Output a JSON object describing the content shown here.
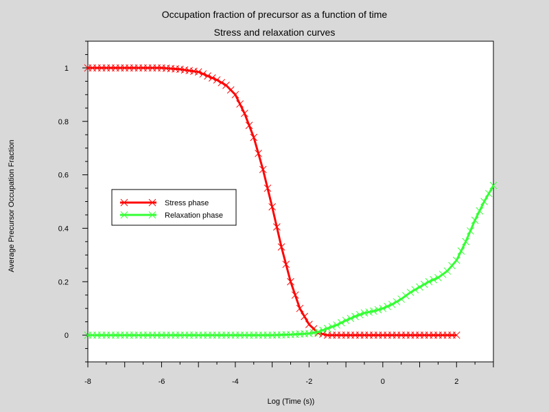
{
  "chart_data": {
    "type": "line",
    "title": "Occupation fraction of precursor as a function of time",
    "subtitle": "Stress and relaxation curves",
    "xlabel": "Log (Time (s))",
    "ylabel": "Average Precursor Occupation Fraction",
    "xlim": [
      -8,
      3
    ],
    "ylim": [
      -0.1,
      1.1
    ],
    "x_ticks": [
      -8,
      -6,
      -4,
      -2,
      0,
      2
    ],
    "y_ticks": [
      0,
      0.2,
      0.4,
      0.6,
      0.8,
      1
    ],
    "x_tick_labels": [
      "-8",
      "-6",
      "-4",
      "-2",
      "0",
      "2"
    ],
    "y_tick_labels": [
      "0",
      "0.2",
      "0.4",
      "0.6",
      "0.8",
      "1"
    ],
    "grid": false,
    "legend": "left-center",
    "series": [
      {
        "name": "Stress phase",
        "color": "#ff0000",
        "marker": "x",
        "points": [
          [
            -8.0,
            1.0
          ],
          [
            -7.5,
            1.0
          ],
          [
            -7.0,
            1.0
          ],
          [
            -6.5,
            1.0
          ],
          [
            -6.0,
            1.0
          ],
          [
            -5.5,
            0.995
          ],
          [
            -5.0,
            0.985
          ],
          [
            -4.75,
            0.97
          ],
          [
            -4.5,
            0.955
          ],
          [
            -4.25,
            0.935
          ],
          [
            -4.0,
            0.9
          ],
          [
            -3.75,
            0.83
          ],
          [
            -3.5,
            0.74
          ],
          [
            -3.25,
            0.62
          ],
          [
            -3.0,
            0.48
          ],
          [
            -2.75,
            0.33
          ],
          [
            -2.5,
            0.2
          ],
          [
            -2.25,
            0.1
          ],
          [
            -2.0,
            0.04
          ],
          [
            -1.75,
            0.008
          ],
          [
            -1.5,
            0.0
          ],
          [
            -1.0,
            0.0
          ],
          [
            0.0,
            0.0
          ],
          [
            1.0,
            0.0
          ],
          [
            2.0,
            0.0
          ]
        ]
      },
      {
        "name": "Relaxation phase",
        "color": "#33ff33",
        "marker": "x",
        "points": [
          [
            -8.0,
            0.0
          ],
          [
            -6.0,
            0.0
          ],
          [
            -4.0,
            0.0
          ],
          [
            -3.25,
            0.0
          ],
          [
            -3.0,
            0.0
          ],
          [
            -2.5,
            0.002
          ],
          [
            -2.0,
            0.006
          ],
          [
            -1.75,
            0.012
          ],
          [
            -1.5,
            0.025
          ],
          [
            -1.25,
            0.038
          ],
          [
            -1.0,
            0.055
          ],
          [
            -0.75,
            0.07
          ],
          [
            -0.5,
            0.083
          ],
          [
            -0.25,
            0.09
          ],
          [
            0.0,
            0.1
          ],
          [
            0.25,
            0.115
          ],
          [
            0.5,
            0.135
          ],
          [
            0.75,
            0.16
          ],
          [
            1.0,
            0.18
          ],
          [
            1.25,
            0.2
          ],
          [
            1.5,
            0.215
          ],
          [
            1.75,
            0.24
          ],
          [
            2.0,
            0.28
          ],
          [
            2.25,
            0.35
          ],
          [
            2.5,
            0.43
          ],
          [
            2.75,
            0.5
          ],
          [
            3.0,
            0.56
          ]
        ]
      }
    ]
  }
}
